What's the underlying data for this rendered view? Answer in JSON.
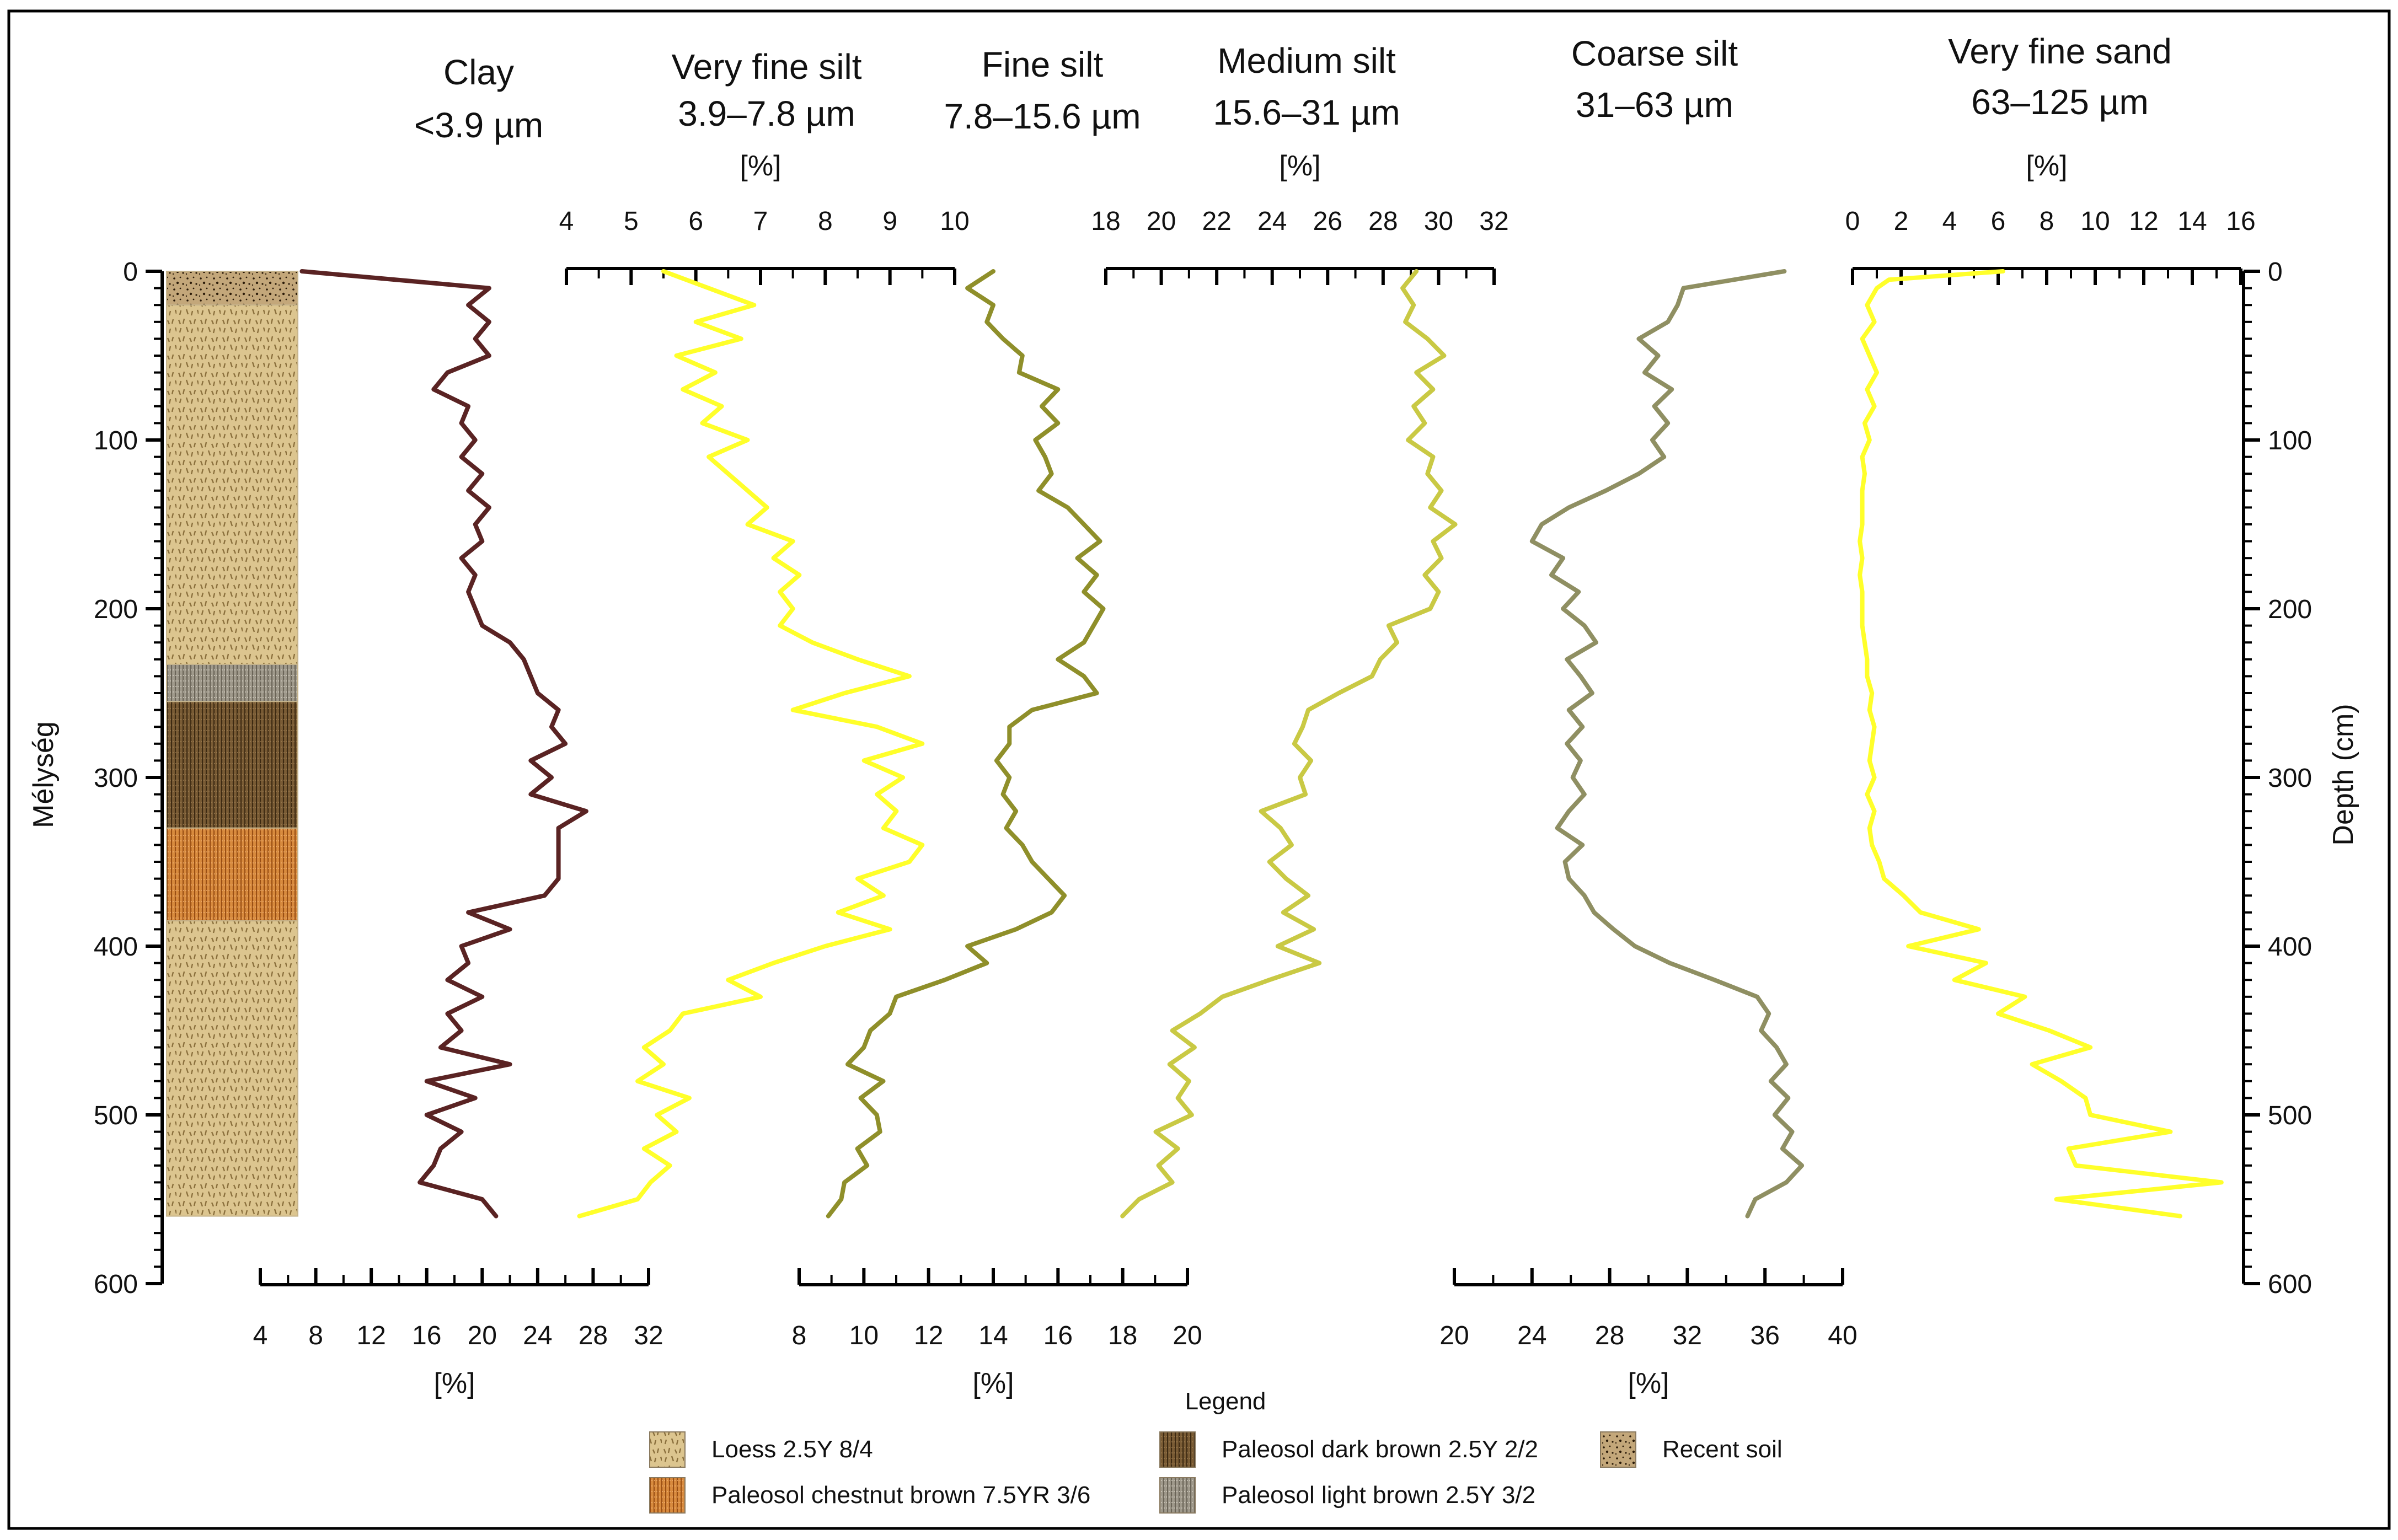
{
  "figure": {
    "left_axis_label": "Mélység",
    "right_axis_label": "Depth (cm)",
    "depth_ticks": [
      "0",
      "100",
      "200",
      "300",
      "400",
      "500",
      "600"
    ],
    "legend_title": "Legend"
  },
  "legend": [
    {
      "key": "loess",
      "label": "Loess 2.5Y 8/4"
    },
    {
      "key": "dark",
      "label": "Paleosol dark brown 2.5Y 2/2"
    },
    {
      "key": "recent",
      "label": "Recent soil"
    },
    {
      "key": "chestnut",
      "label": "Paleosol chestnut brown 7.5YR 3/6"
    },
    {
      "key": "light",
      "label": "Paleosol light brown 2.5Y 3/2"
    }
  ],
  "colors": {
    "clay": "#5a2323",
    "very_fine_silt": "#ffff2a",
    "fine_silt": "#8f8f2a",
    "medium_silt": "#c9c944",
    "coarse_silt": "#8f8f62",
    "very_fine_sand": "#ffff2a",
    "loess": "#dcc58f",
    "dark": "#7a5c35",
    "chestnut": "#d98b3e",
    "light": "#a09a8c",
    "recent": "#b79b6d"
  },
  "stratigraphy": [
    {
      "key": "recent",
      "from": 0,
      "to": 20
    },
    {
      "key": "loess",
      "from": 20,
      "to": 233
    },
    {
      "key": "light",
      "from": 233,
      "to": 255
    },
    {
      "key": "dark",
      "from": 255,
      "to": 330
    },
    {
      "key": "chestnut",
      "from": 330,
      "to": 385
    },
    {
      "key": "loess",
      "from": 385,
      "to": 560
    }
  ],
  "chart_data": [
    {
      "type": "line",
      "id": "clay",
      "title": "Clay",
      "subtitle": "<3.9 µm",
      "xlabel": "[%]",
      "axis_position": "bottom",
      "xlim": [
        4,
        32
      ],
      "ticks": [
        "4",
        "8",
        "12",
        "16",
        "20",
        "24",
        "28",
        "32"
      ],
      "depth": [
        0,
        10,
        20,
        30,
        40,
        50,
        60,
        70,
        80,
        90,
        100,
        110,
        120,
        130,
        140,
        150,
        160,
        170,
        180,
        190,
        200,
        210,
        220,
        230,
        240,
        250,
        260,
        270,
        280,
        290,
        300,
        310,
        320,
        330,
        340,
        350,
        360,
        370,
        380,
        390,
        400,
        410,
        420,
        430,
        440,
        450,
        460,
        470,
        480,
        490,
        500,
        510,
        520,
        530,
        540,
        550,
        560
      ],
      "values": [
        7,
        20.5,
        19,
        20.5,
        19.5,
        20.5,
        17.5,
        16.5,
        19,
        18.5,
        19.5,
        18.5,
        20,
        19,
        20.5,
        19.5,
        20,
        18.5,
        19.5,
        19,
        19.5,
        20,
        22,
        23,
        23.5,
        24,
        25.5,
        25,
        26,
        23.5,
        25,
        23.5,
        27.5,
        25.5,
        25.5,
        25.5,
        25.5,
        24.5,
        19,
        22,
        18.5,
        19,
        17.5,
        20,
        17.5,
        18.5,
        17,
        22,
        16,
        19.5,
        16,
        18.5,
        17,
        16.5,
        15.5,
        20,
        21
      ]
    },
    {
      "type": "line",
      "id": "very_fine_silt",
      "title": "Very fine silt",
      "subtitle": "3.9–7.8 µm",
      "xlabel": "[%]",
      "axis_position": "top",
      "xlim": [
        4,
        10
      ],
      "ticks": [
        "4",
        "5",
        "6",
        "7",
        "8",
        "9",
        "10"
      ],
      "depth": [
        0,
        10,
        20,
        30,
        40,
        50,
        60,
        70,
        80,
        90,
        100,
        110,
        120,
        130,
        140,
        150,
        160,
        170,
        180,
        190,
        200,
        210,
        220,
        230,
        240,
        250,
        260,
        270,
        280,
        290,
        300,
        310,
        320,
        330,
        340,
        350,
        360,
        370,
        380,
        390,
        400,
        410,
        420,
        430,
        440,
        450,
        460,
        470,
        480,
        490,
        500,
        510,
        520,
        530,
        540,
        550,
        560
      ],
      "values": [
        5.5,
        6.2,
        6.9,
        6,
        6.7,
        5.7,
        6.3,
        5.8,
        6.4,
        6.1,
        6.8,
        6.2,
        6.5,
        6.8,
        7.1,
        6.8,
        7.5,
        7.2,
        7.6,
        7.3,
        7.5,
        7.3,
        7.8,
        8.5,
        9.3,
        8.3,
        7.5,
        8.8,
        9.5,
        8.6,
        9.2,
        8.8,
        9.1,
        8.9,
        9.5,
        9.3,
        8.5,
        8.9,
        8.2,
        9,
        8,
        7.2,
        6.5,
        7,
        5.8,
        5.6,
        5.2,
        5.5,
        5.1,
        5.9,
        5.4,
        5.7,
        5.2,
        5.6,
        5.3,
        5.1,
        4.2
      ]
    },
    {
      "type": "line",
      "id": "fine_silt",
      "title": "Fine silt",
      "subtitle": "7.8–15.6 µm",
      "xlabel": "[%]",
      "axis_position": "bottom",
      "xlim": [
        8,
        20
      ],
      "ticks": [
        "8",
        "10",
        "12",
        "14",
        "16",
        "18",
        "20"
      ],
      "depth": [
        0,
        10,
        20,
        30,
        40,
        50,
        60,
        70,
        80,
        90,
        100,
        110,
        120,
        130,
        140,
        150,
        160,
        170,
        180,
        190,
        200,
        210,
        220,
        230,
        240,
        250,
        260,
        270,
        280,
        290,
        300,
        310,
        320,
        330,
        340,
        350,
        360,
        370,
        380,
        390,
        400,
        410,
        420,
        430,
        440,
        450,
        460,
        470,
        480,
        490,
        500,
        510,
        520,
        530,
        540,
        550,
        560
      ],
      "values": [
        14,
        13.2,
        14,
        13.8,
        14.3,
        14.9,
        14.8,
        16,
        15.5,
        16,
        15.3,
        15.6,
        15.8,
        15.4,
        16.3,
        16.8,
        17.3,
        16.6,
        17.2,
        16.8,
        17.4,
        17.1,
        16.8,
        16,
        16.8,
        17.2,
        15.2,
        14.5,
        14.5,
        14.1,
        14.5,
        14.3,
        14.7,
        14.4,
        14.9,
        15.2,
        15.7,
        16.2,
        15.8,
        14.7,
        13.2,
        13.8,
        12.5,
        11,
        10.8,
        10.2,
        10,
        9.5,
        10.6,
        9.9,
        10.4,
        10.5,
        9.8,
        10.1,
        9.4,
        9.3,
        8.9
      ]
    },
    {
      "type": "line",
      "id": "medium_silt",
      "title": "Medium silt",
      "subtitle": "15.6–31 µm",
      "xlabel": "[%]",
      "axis_position": "top",
      "xlim": [
        18,
        32
      ],
      "ticks": [
        "18",
        "20",
        "22",
        "24",
        "26",
        "28",
        "30",
        "32"
      ],
      "depth": [
        0,
        10,
        20,
        30,
        40,
        50,
        60,
        70,
        80,
        90,
        100,
        110,
        120,
        130,
        140,
        150,
        160,
        170,
        180,
        190,
        200,
        210,
        220,
        230,
        240,
        250,
        260,
        270,
        280,
        290,
        300,
        310,
        320,
        330,
        340,
        350,
        360,
        370,
        380,
        390,
        400,
        410,
        420,
        430,
        440,
        450,
        460,
        470,
        480,
        490,
        500,
        510,
        520,
        530,
        540,
        550,
        560
      ],
      "values": [
        29.2,
        28.7,
        29.1,
        28.8,
        29.6,
        30.2,
        29.2,
        29.8,
        29.1,
        29.5,
        28.9,
        29.8,
        29.6,
        30.1,
        29.7,
        30.6,
        29.8,
        30.1,
        29.5,
        30,
        29.7,
        28.2,
        28.5,
        27.9,
        27.6,
        26.4,
        25.3,
        25.1,
        24.8,
        25.4,
        25,
        25.2,
        23.6,
        24.3,
        24.7,
        23.9,
        24.5,
        25.3,
        24.4,
        25.5,
        24.2,
        25.7,
        23.9,
        22.2,
        21.4,
        20.4,
        21.2,
        20.3,
        21,
        20.6,
        21.1,
        19.8,
        20.6,
        19.9,
        20.4,
        19.2,
        18.6
      ]
    },
    {
      "type": "line",
      "id": "coarse_silt",
      "title": "Coarse silt",
      "subtitle": "31–63 µm",
      "xlabel": "[%]",
      "axis_position": "bottom",
      "xlim": [
        20,
        40
      ],
      "ticks": [
        "20",
        "24",
        "28",
        "32",
        "36",
        "40"
      ],
      "depth": [
        0,
        10,
        20,
        30,
        40,
        50,
        60,
        70,
        80,
        90,
        100,
        110,
        120,
        130,
        140,
        150,
        160,
        170,
        180,
        190,
        200,
        210,
        220,
        230,
        240,
        250,
        260,
        270,
        280,
        290,
        300,
        310,
        320,
        330,
        340,
        350,
        360,
        370,
        380,
        390,
        400,
        410,
        420,
        430,
        440,
        450,
        460,
        470,
        480,
        490,
        500,
        510,
        520,
        530,
        540,
        550,
        560
      ],
      "values": [
        37,
        31.8,
        31.5,
        31,
        29.5,
        30.5,
        29.8,
        31.2,
        30.3,
        31,
        30.2,
        30.8,
        29.5,
        27.8,
        25.9,
        24.5,
        24,
        25.6,
        25,
        26.4,
        25.6,
        26.7,
        27.3,
        25.8,
        26.5,
        27.1,
        25.9,
        26.6,
        25.8,
        26.5,
        26.1,
        26.7,
        25.9,
        25.3,
        26.6,
        25.7,
        25.9,
        26.7,
        27.2,
        28.2,
        29.3,
        31.1,
        33.4,
        35.6,
        36.2,
        35.8,
        36.6,
        37.1,
        36.3,
        37.2,
        36.5,
        37.4,
        36.9,
        37.9,
        37.1,
        35.5,
        35.1
      ]
    },
    {
      "type": "line",
      "id": "very_fine_sand",
      "title": "Very fine sand",
      "subtitle": "63–125 µm",
      "xlabel": "[%]",
      "axis_position": "top",
      "xlim": [
        0,
        16
      ],
      "ticks": [
        "0",
        "2",
        "4",
        "6",
        "8",
        "10",
        "12",
        "14",
        "16"
      ],
      "depth": [
        0,
        5,
        10,
        20,
        30,
        40,
        50,
        60,
        70,
        80,
        90,
        100,
        110,
        120,
        130,
        140,
        150,
        160,
        170,
        180,
        190,
        200,
        210,
        220,
        230,
        240,
        250,
        260,
        270,
        280,
        290,
        300,
        310,
        320,
        330,
        340,
        350,
        360,
        370,
        380,
        390,
        400,
        410,
        420,
        430,
        440,
        450,
        460,
        470,
        480,
        490,
        500,
        510,
        520,
        530,
        540,
        550,
        560
      ],
      "values": [
        6.2,
        1.5,
        1,
        0.6,
        0.9,
        0.4,
        0.7,
        1,
        0.6,
        0.9,
        0.5,
        0.7,
        0.4,
        0.5,
        0.4,
        0.4,
        0.4,
        0.3,
        0.4,
        0.3,
        0.4,
        0.4,
        0.4,
        0.5,
        0.6,
        0.6,
        0.8,
        0.7,
        0.9,
        0.8,
        0.7,
        0.9,
        0.6,
        0.9,
        0.7,
        0.8,
        1.1,
        1.3,
        2.1,
        2.8,
        5.2,
        2.3,
        5.5,
        4.2,
        7.1,
        6,
        8.1,
        9.8,
        7.4,
        8.6,
        9.6,
        9.8,
        13.1,
        8.9,
        9.2,
        15.2,
        8.4,
        13.5
      ]
    }
  ]
}
